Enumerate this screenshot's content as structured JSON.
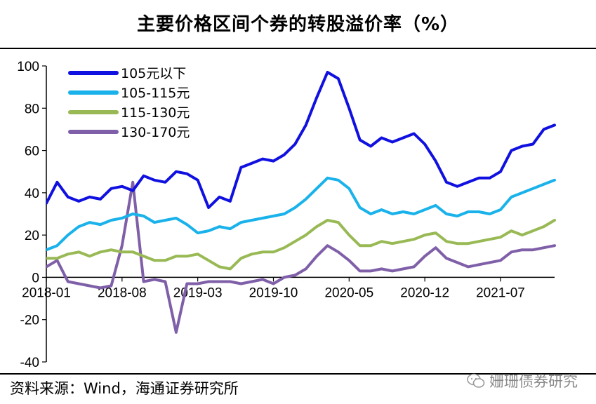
{
  "title": "主要价格区间个券的转股溢价率（%）",
  "source": "资料来源：Wind，海通证券研究所",
  "watermark": "姗珊债券研究",
  "chart_data": {
    "type": "line",
    "title": "主要价格区间个券的转股溢价率（%）",
    "xlabel": "",
    "ylabel": "",
    "ylim": [
      -40,
      100
    ],
    "yticks": [
      -40,
      -20,
      0,
      20,
      40,
      60,
      80,
      100
    ],
    "xlim": [
      "2018-01",
      "2021-12"
    ],
    "x_tick_labels": [
      "2018-01",
      "2018-08",
      "2019-03",
      "2019-10",
      "2020-05",
      "2020-12",
      "2021-07"
    ],
    "grid": false,
    "legend_position": "top-left",
    "series": [
      {
        "name": "105元以下",
        "color": "#1010e0",
        "points": [
          [
            "2018-01",
            35
          ],
          [
            "2018-02",
            45
          ],
          [
            "2018-03",
            38
          ],
          [
            "2018-04",
            36
          ],
          [
            "2018-05",
            38
          ],
          [
            "2018-06",
            37
          ],
          [
            "2018-07",
            42
          ],
          [
            "2018-08",
            43
          ],
          [
            "2018-09",
            41
          ],
          [
            "2018-10",
            48
          ],
          [
            "2018-11",
            46
          ],
          [
            "2018-12",
            45
          ],
          [
            "2019-01",
            50
          ],
          [
            "2019-02",
            49
          ],
          [
            "2019-03",
            46
          ],
          [
            "2019-04",
            33
          ],
          [
            "2019-05",
            38
          ],
          [
            "2019-06",
            36
          ],
          [
            "2019-07",
            52
          ],
          [
            "2019-08",
            54
          ],
          [
            "2019-09",
            56
          ],
          [
            "2019-10",
            55
          ],
          [
            "2019-11",
            58
          ],
          [
            "2019-12",
            63
          ],
          [
            "2020-01",
            72
          ],
          [
            "2020-02",
            85
          ],
          [
            "2020-03",
            97
          ],
          [
            "2020-04",
            94
          ],
          [
            "2020-05",
            80
          ],
          [
            "2020-06",
            65
          ],
          [
            "2020-07",
            62
          ],
          [
            "2020-08",
            66
          ],
          [
            "2020-09",
            64
          ],
          [
            "2020-10",
            66
          ],
          [
            "2020-11",
            68
          ],
          [
            "2020-12",
            63
          ],
          [
            "2021-01",
            55
          ],
          [
            "2021-02",
            45
          ],
          [
            "2021-03",
            43
          ],
          [
            "2021-04",
            45
          ],
          [
            "2021-05",
            47
          ],
          [
            "2021-06",
            47
          ],
          [
            "2021-07",
            50
          ],
          [
            "2021-08",
            60
          ],
          [
            "2021-09",
            62
          ],
          [
            "2021-10",
            63
          ],
          [
            "2021-11",
            70
          ],
          [
            "2021-12",
            72
          ]
        ]
      },
      {
        "name": "105-115元",
        "color": "#1ab2ea",
        "points": [
          [
            "2018-01",
            13
          ],
          [
            "2018-02",
            15
          ],
          [
            "2018-03",
            20
          ],
          [
            "2018-04",
            24
          ],
          [
            "2018-05",
            26
          ],
          [
            "2018-06",
            25
          ],
          [
            "2018-07",
            27
          ],
          [
            "2018-08",
            28
          ],
          [
            "2018-09",
            30
          ],
          [
            "2018-10",
            29
          ],
          [
            "2018-11",
            26
          ],
          [
            "2018-12",
            27
          ],
          [
            "2019-01",
            28
          ],
          [
            "2019-02",
            25
          ],
          [
            "2019-03",
            21
          ],
          [
            "2019-04",
            22
          ],
          [
            "2019-05",
            24
          ],
          [
            "2019-06",
            23
          ],
          [
            "2019-07",
            26
          ],
          [
            "2019-08",
            27
          ],
          [
            "2019-09",
            28
          ],
          [
            "2019-10",
            29
          ],
          [
            "2019-11",
            30
          ],
          [
            "2019-12",
            33
          ],
          [
            "2020-01",
            37
          ],
          [
            "2020-02",
            42
          ],
          [
            "2020-03",
            47
          ],
          [
            "2020-04",
            46
          ],
          [
            "2020-05",
            42
          ],
          [
            "2020-06",
            33
          ],
          [
            "2020-07",
            30
          ],
          [
            "2020-08",
            32
          ],
          [
            "2020-09",
            30
          ],
          [
            "2020-10",
            31
          ],
          [
            "2020-11",
            30
          ],
          [
            "2020-12",
            32
          ],
          [
            "2021-01",
            34
          ],
          [
            "2021-02",
            30
          ],
          [
            "2021-03",
            29
          ],
          [
            "2021-04",
            31
          ],
          [
            "2021-05",
            31
          ],
          [
            "2021-06",
            30
          ],
          [
            "2021-07",
            32
          ],
          [
            "2021-08",
            38
          ],
          [
            "2021-09",
            40
          ],
          [
            "2021-10",
            42
          ],
          [
            "2021-11",
            44
          ],
          [
            "2021-12",
            46
          ]
        ]
      },
      {
        "name": "115-130元",
        "color": "#98b954",
        "points": [
          [
            "2018-01",
            9
          ],
          [
            "2018-02",
            9
          ],
          [
            "2018-03",
            11
          ],
          [
            "2018-04",
            12
          ],
          [
            "2018-05",
            10
          ],
          [
            "2018-06",
            12
          ],
          [
            "2018-07",
            13
          ],
          [
            "2018-08",
            12
          ],
          [
            "2018-09",
            12
          ],
          [
            "2018-10",
            10
          ],
          [
            "2018-11",
            8
          ],
          [
            "2018-12",
            8
          ],
          [
            "2019-01",
            10
          ],
          [
            "2019-02",
            10
          ],
          [
            "2019-03",
            11
          ],
          [
            "2019-04",
            8
          ],
          [
            "2019-05",
            5
          ],
          [
            "2019-06",
            4
          ],
          [
            "2019-07",
            9
          ],
          [
            "2019-08",
            11
          ],
          [
            "2019-09",
            12
          ],
          [
            "2019-10",
            12
          ],
          [
            "2019-11",
            14
          ],
          [
            "2019-12",
            17
          ],
          [
            "2020-01",
            20
          ],
          [
            "2020-02",
            24
          ],
          [
            "2020-03",
            27
          ],
          [
            "2020-04",
            26
          ],
          [
            "2020-05",
            20
          ],
          [
            "2020-06",
            15
          ],
          [
            "2020-07",
            15
          ],
          [
            "2020-08",
            17
          ],
          [
            "2020-09",
            16
          ],
          [
            "2020-10",
            17
          ],
          [
            "2020-11",
            18
          ],
          [
            "2020-12",
            20
          ],
          [
            "2021-01",
            21
          ],
          [
            "2021-02",
            17
          ],
          [
            "2021-03",
            16
          ],
          [
            "2021-04",
            16
          ],
          [
            "2021-05",
            17
          ],
          [
            "2021-06",
            18
          ],
          [
            "2021-07",
            19
          ],
          [
            "2021-08",
            22
          ],
          [
            "2021-09",
            20
          ],
          [
            "2021-10",
            22
          ],
          [
            "2021-11",
            24
          ],
          [
            "2021-12",
            27
          ]
        ]
      },
      {
        "name": "130-170元",
        "color": "#7f5fa8",
        "points": [
          [
            "2018-01",
            5
          ],
          [
            "2018-02",
            8
          ],
          [
            "2018-03",
            -2
          ],
          [
            "2018-04",
            -3
          ],
          [
            "2018-05",
            -4
          ],
          [
            "2018-06",
            -5
          ],
          [
            "2018-07",
            -4
          ],
          [
            "2018-08",
            15
          ],
          [
            "2018-09",
            45
          ],
          [
            "2018-10",
            -2
          ],
          [
            "2018-11",
            -1
          ],
          [
            "2018-12",
            -2
          ],
          [
            "2019-01",
            -26
          ],
          [
            "2019-02",
            -3
          ],
          [
            "2019-03",
            -3
          ],
          [
            "2019-04",
            -2
          ],
          [
            "2019-05",
            -2
          ],
          [
            "2019-06",
            -2
          ],
          [
            "2019-07",
            -3
          ],
          [
            "2019-08",
            -2
          ],
          [
            "2019-09",
            -1
          ],
          [
            "2019-10",
            -3
          ],
          [
            "2019-11",
            0
          ],
          [
            "2019-12",
            1
          ],
          [
            "2020-01",
            4
          ],
          [
            "2020-02",
            10
          ],
          [
            "2020-03",
            15
          ],
          [
            "2020-04",
            12
          ],
          [
            "2020-05",
            8
          ],
          [
            "2020-06",
            3
          ],
          [
            "2020-07",
            3
          ],
          [
            "2020-08",
            4
          ],
          [
            "2020-09",
            3
          ],
          [
            "2020-10",
            4
          ],
          [
            "2020-11",
            5
          ],
          [
            "2020-12",
            10
          ],
          [
            "2021-01",
            14
          ],
          [
            "2021-02",
            9
          ],
          [
            "2021-03",
            7
          ],
          [
            "2021-04",
            5
          ],
          [
            "2021-05",
            6
          ],
          [
            "2021-06",
            7
          ],
          [
            "2021-07",
            8
          ],
          [
            "2021-08",
            12
          ],
          [
            "2021-09",
            13
          ],
          [
            "2021-10",
            13
          ],
          [
            "2021-11",
            14
          ],
          [
            "2021-12",
            15
          ]
        ]
      }
    ]
  }
}
